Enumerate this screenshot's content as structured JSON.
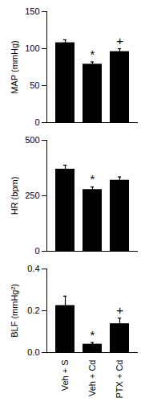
{
  "chart_data": [
    {
      "type": "bar",
      "ylabel": "MAP (mmHg)",
      "categories": [
        "Veh + S",
        "Veh + Cd",
        "PTX + Cd"
      ],
      "values": [
        108,
        79,
        96
      ],
      "errors": [
        4,
        3,
        4
      ],
      "annotations": [
        {
          "category": "Veh + Cd",
          "text": "*"
        },
        {
          "category": "PTX + Cd",
          "text": "+"
        }
      ],
      "color": "#000000",
      "ylim": [
        0,
        150
      ],
      "yticks": [
        0,
        50,
        100,
        150
      ],
      "tick_labels": "y"
    },
    {
      "type": "bar",
      "ylabel": "HR (bpm)",
      "categories": [
        "Veh + S",
        "Veh + Cd",
        "PTX + Cd"
      ],
      "values": [
        370,
        278,
        320
      ],
      "errors": [
        18,
        12,
        15
      ],
      "annotations": [
        {
          "category": "Veh + Cd",
          "text": "*"
        }
      ],
      "color": "#000000",
      "ylim": [
        0,
        500
      ],
      "yticks": [
        0,
        250,
        500
      ],
      "tick_labels": "y"
    },
    {
      "type": "bar",
      "ylabel": "BLF (mmHg²)",
      "categories": [
        "Veh + S",
        "Veh + Cd",
        "PTX + Cd"
      ],
      "values": [
        0.225,
        0.04,
        0.138
      ],
      "errors": [
        0.045,
        0.008,
        0.027
      ],
      "annotations": [
        {
          "category": "Veh + Cd",
          "text": "*"
        },
        {
          "category": "PTX + Cd",
          "text": "+"
        }
      ],
      "color": "#000000",
      "ylim": [
        0,
        0.4
      ],
      "yticks": [
        {
          "value": 0,
          "label": "0.0"
        },
        0.2,
        0.4
      ]
    }
  ]
}
